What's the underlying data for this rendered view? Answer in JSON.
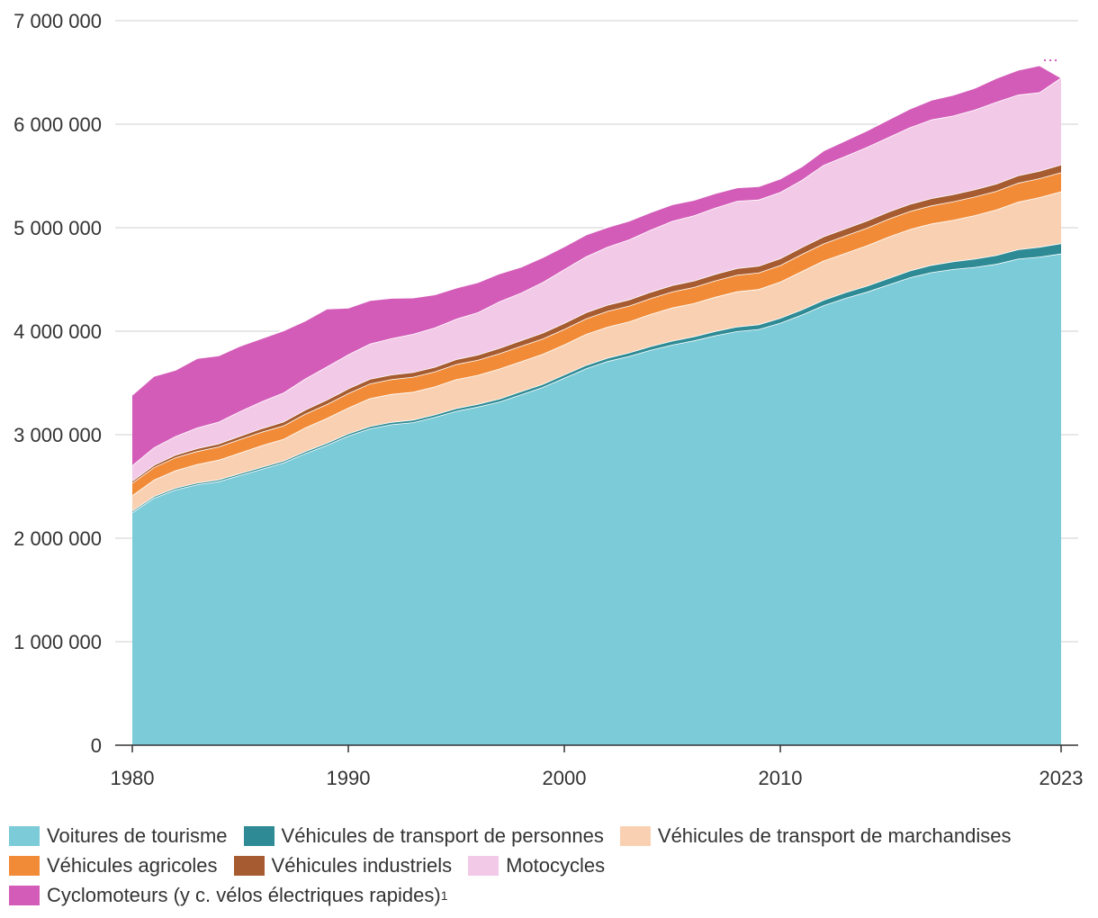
{
  "chart_data": {
    "type": "area",
    "stacked": true,
    "title": "",
    "xlabel": "",
    "ylabel": "",
    "xlim": [
      1980,
      2023
    ],
    "ylim": [
      0,
      7000000
    ],
    "x_ticks": [
      1980,
      1990,
      2000,
      2010,
      2023
    ],
    "y_ticks": [
      0,
      1000000,
      2000000,
      3000000,
      4000000,
      5000000,
      6000000,
      7000000
    ],
    "y_tick_labels": [
      "0",
      "1 000 000",
      "2 000 000",
      "3 000 000",
      "4 000 000",
      "5 000 000",
      "6 000 000",
      "7 000 000"
    ],
    "x_tick_labels": [
      "1980",
      "1990",
      "2000",
      "2010",
      "2023"
    ],
    "grid": "horizontal",
    "legend_position": "bottom",
    "years": [
      1980,
      1981,
      1982,
      1983,
      1984,
      1985,
      1986,
      1987,
      1988,
      1989,
      1990,
      1991,
      1992,
      1993,
      1994,
      1995,
      1996,
      1997,
      1998,
      1999,
      2000,
      2001,
      2002,
      2003,
      2004,
      2005,
      2006,
      2007,
      2008,
      2009,
      2010,
      2011,
      2012,
      2013,
      2014,
      2015,
      2016,
      2017,
      2018,
      2019,
      2020,
      2021,
      2022,
      2023
    ],
    "series": [
      {
        "name": "Voitures de tourisme",
        "color": "#7ccbd8",
        "values": [
          2250000,
          2390000,
          2470000,
          2520000,
          2550000,
          2610000,
          2670000,
          2730000,
          2820000,
          2900000,
          2990000,
          3060000,
          3100000,
          3120000,
          3170000,
          3230000,
          3270000,
          3320000,
          3390000,
          3460000,
          3550000,
          3640000,
          3710000,
          3760000,
          3820000,
          3870000,
          3910000,
          3960000,
          4000000,
          4020000,
          4080000,
          4160000,
          4250000,
          4320000,
          4380000,
          4450000,
          4520000,
          4570000,
          4600000,
          4620000,
          4650000,
          4700000,
          4720000,
          4750000
        ]
      },
      {
        "name": "Véhicules de transport de personnes",
        "color": "#2e8b95",
        "values": [
          15000,
          15000,
          16000,
          16000,
          17000,
          17000,
          18000,
          18000,
          19000,
          20000,
          21000,
          22000,
          23000,
          24000,
          25000,
          26000,
          27000,
          28000,
          29000,
          30000,
          31000,
          32000,
          33000,
          34000,
          36000,
          38000,
          40000,
          42000,
          44000,
          46000,
          48000,
          50000,
          52000,
          55000,
          58000,
          62000,
          66000,
          70000,
          75000,
          80000,
          85000,
          90000,
          95000,
          100000
        ]
      },
      {
        "name": "Véhicules de transport de marchandises",
        "color": "#f9d1b2",
        "values": [
          150000,
          160000,
          170000,
          180000,
          190000,
          200000,
          210000,
          210000,
          230000,
          240000,
          250000,
          270000,
          270000,
          270000,
          270000,
          280000,
          280000,
          290000,
          290000,
          290000,
          290000,
          300000,
          300000,
          300000,
          310000,
          320000,
          320000,
          330000,
          340000,
          340000,
          350000,
          370000,
          380000,
          380000,
          390000,
          400000,
          400000,
          400000,
          400000,
          420000,
          440000,
          460000,
          480000,
          500000
        ]
      },
      {
        "name": "Véhicules agricoles",
        "color": "#f28b38",
        "values": [
          120000,
          120000,
          125000,
          125000,
          128000,
          130000,
          130000,
          130000,
          132000,
          135000,
          140000,
          142000,
          143000,
          145000,
          145000,
          146000,
          146000,
          148000,
          148000,
          148000,
          150000,
          150000,
          152000,
          152000,
          152000,
          155000,
          156000,
          158000,
          160000,
          160000,
          160000,
          165000,
          165000,
          168000,
          170000,
          172000,
          174000,
          175000,
          178000,
          180000,
          180000,
          182000,
          182000,
          185000
        ]
      },
      {
        "name": "Véhicules industriels",
        "color": "#a65c30",
        "values": [
          20000,
          22000,
          25000,
          28000,
          30000,
          32000,
          35000,
          38000,
          40000,
          42000,
          45000,
          45000,
          45000,
          45000,
          45000,
          48000,
          50000,
          52000,
          55000,
          56000,
          58000,
          60000,
          60000,
          60000,
          62000,
          62000,
          62000,
          64000,
          65000,
          65000,
          66000,
          67000,
          68000,
          68000,
          70000,
          70000,
          70000,
          70000,
          70000,
          70000,
          70000,
          72000,
          72000,
          75000
        ]
      },
      {
        "name": "Motocycles",
        "color": "#f3c9e8",
        "values": [
          150000,
          170000,
          180000,
          200000,
          210000,
          240000,
          260000,
          280000,
          300000,
          320000,
          330000,
          340000,
          350000,
          370000,
          380000,
          390000,
          410000,
          450000,
          460000,
          490000,
          520000,
          540000,
          560000,
          580000,
          600000,
          620000,
          630000,
          640000,
          650000,
          640000,
          640000,
          650000,
          690000,
          700000,
          710000,
          720000,
          740000,
          760000,
          760000,
          770000,
          790000,
          780000,
          760000,
          840000
        ]
      },
      {
        "name": "Cyclomoteurs (y c. vélos électriques rapides)",
        "color": "#d35cb8",
        "footnote": "1",
        "values": [
          680000,
          690000,
          640000,
          670000,
          640000,
          630000,
          610000,
          600000,
          560000,
          560000,
          450000,
          420000,
          390000,
          350000,
          320000,
          300000,
          290000,
          270000,
          250000,
          240000,
          220000,
          210000,
          190000,
          180000,
          170000,
          160000,
          150000,
          140000,
          130000,
          130000,
          130000,
          130000,
          140000,
          150000,
          160000,
          170000,
          180000,
          190000,
          200000,
          210000,
          230000,
          240000,
          260000,
          0
        ]
      }
    ]
  }
}
